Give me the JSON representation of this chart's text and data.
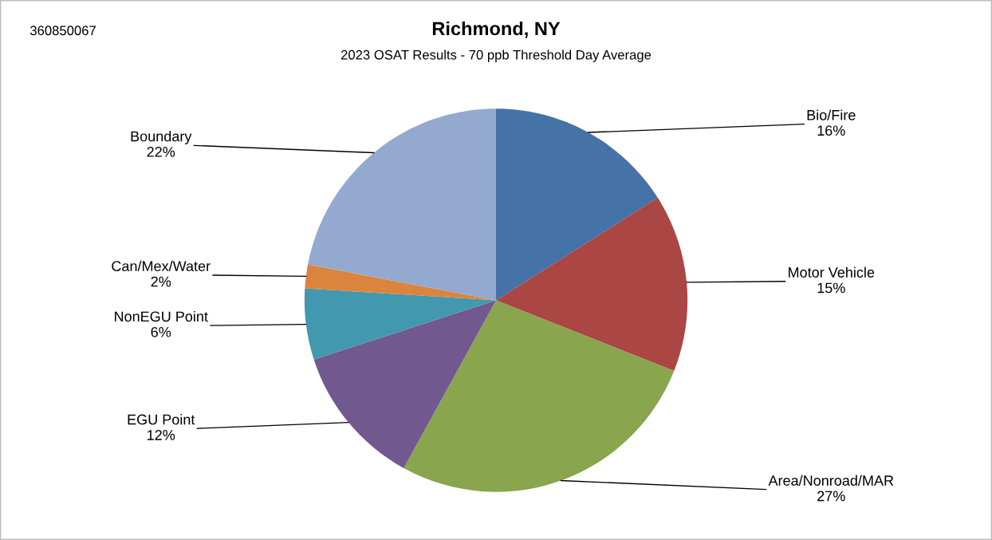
{
  "chart_data": {
    "type": "pie",
    "title": "Richmond, NY",
    "subtitle": "2023 OSAT Results - 70 ppb Threshold Day Average",
    "annotations": [
      "360850067"
    ],
    "categories": [
      "Bio/Fire",
      "Motor Vehicle",
      "Area/Nonroad/MAR",
      "EGU Point",
      "NonEGU Point",
      "Can/Mex/Water",
      "Boundary"
    ],
    "values": [
      16,
      15,
      27,
      12,
      6,
      2,
      22
    ],
    "value_labels": [
      "16%",
      "15%",
      "27%",
      "12%",
      "6%",
      "2%",
      "22%"
    ],
    "colors": [
      "#4572a7",
      "#aa4643",
      "#89a54e",
      "#71588f",
      "#4198af",
      "#db843d",
      "#93a9cf"
    ],
    "legend": false
  }
}
